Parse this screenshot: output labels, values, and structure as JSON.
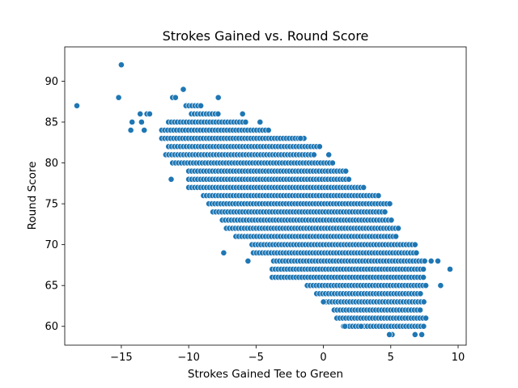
{
  "chart_data": {
    "type": "scatter",
    "title": "Strokes Gained vs. Round Score",
    "xlabel": "Strokes Gained Tee to Green",
    "ylabel": "Round Score",
    "xlim": [
      -19.2,
      10.6
    ],
    "ylim": [
      57.7,
      94.2
    ],
    "xticks": [
      -15,
      -10,
      -5,
      0,
      5,
      10
    ],
    "yticks": [
      60,
      65,
      70,
      75,
      80,
      85,
      90
    ],
    "grid": false,
    "legend": "none",
    "marker_color": "#1f77b4",
    "outliers": [
      [
        -18.3,
        87
      ],
      [
        -15.0,
        92
      ],
      [
        -15.2,
        88
      ],
      [
        -14.2,
        85
      ],
      [
        -14.3,
        84
      ],
      [
        -13.6,
        86
      ],
      [
        -13.5,
        85
      ],
      [
        -13.3,
        84
      ],
      [
        -13.1,
        86
      ],
      [
        -12.9,
        86
      ],
      [
        -11.3,
        78
      ],
      [
        -10.4,
        89
      ],
      [
        -7.4,
        69
      ],
      [
        -5.6,
        68
      ],
      [
        -7.8,
        88
      ],
      [
        9.4,
        67
      ],
      [
        8.7,
        65
      ],
      [
        8.5,
        68
      ],
      [
        8.0,
        68
      ],
      [
        7.3,
        59
      ],
      [
        6.8,
        59
      ],
      [
        5.1,
        59
      ],
      [
        4.9,
        59
      ],
      [
        2.8,
        60
      ],
      [
        1.6,
        60
      ],
      [
        0.0,
        63
      ],
      [
        0.4,
        81
      ],
      [
        -1.7,
        83
      ],
      [
        -4.7,
        85
      ],
      [
        -6.0,
        86
      ]
    ],
    "band": {
      "description": "dense rows of points at integer scores",
      "rows": [
        {
          "y": 60,
          "x": [
            1.5,
            7.6
          ]
        },
        {
          "y": 61,
          "x": [
            1.0,
            7.8
          ]
        },
        {
          "y": 62,
          "x": [
            0.8,
            7.3
          ]
        },
        {
          "y": 63,
          "x": [
            0.2,
            7.5
          ]
        },
        {
          "y": 64,
          "x": [
            -0.5,
            7.3
          ]
        },
        {
          "y": 65,
          "x": [
            -1.2,
            7.7
          ]
        },
        {
          "y": 66,
          "x": [
            -3.8,
            7.5
          ]
        },
        {
          "y": 67,
          "x": [
            -3.8,
            7.5
          ]
        },
        {
          "y": 68,
          "x": [
            -3.7,
            7.6
          ]
        },
        {
          "y": 69,
          "x": [
            -5.2,
            7.0
          ]
        },
        {
          "y": 70,
          "x": [
            -5.3,
            6.8
          ]
        },
        {
          "y": 71,
          "x": [
            -6.5,
            5.5
          ]
        },
        {
          "y": 72,
          "x": [
            -7.2,
            5.6
          ]
        },
        {
          "y": 73,
          "x": [
            -7.5,
            5.1
          ]
        },
        {
          "y": 74,
          "x": [
            -8.2,
            4.6
          ]
        },
        {
          "y": 75,
          "x": [
            -8.5,
            5.0
          ]
        },
        {
          "y": 76,
          "x": [
            -8.9,
            4.2
          ]
        },
        {
          "y": 77,
          "x": [
            -10.0,
            3.0
          ]
        },
        {
          "y": 78,
          "x": [
            -10.0,
            2.0
          ]
        },
        {
          "y": 79,
          "x": [
            -10.0,
            1.7
          ]
        },
        {
          "y": 80,
          "x": [
            -11.2,
            0.7
          ]
        },
        {
          "y": 81,
          "x": [
            -11.7,
            -0.5
          ]
        },
        {
          "y": 82,
          "x": [
            -11.5,
            -0.2
          ]
        },
        {
          "y": 83,
          "x": [
            -12.0,
            -1.3
          ]
        },
        {
          "y": 84,
          "x": [
            -12.0,
            -4.0
          ]
        },
        {
          "y": 85,
          "x": [
            -11.5,
            -5.7
          ]
        },
        {
          "y": 86,
          "x": [
            -9.8,
            -7.7
          ]
        },
        {
          "y": 87,
          "x": [
            -10.2,
            -9.0
          ]
        },
        {
          "y": 88,
          "x": [
            -11.2,
            -10.8
          ]
        }
      ]
    }
  }
}
